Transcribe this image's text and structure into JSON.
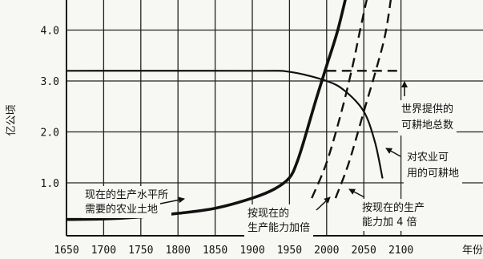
{
  "chart_data": {
    "type": "line",
    "title": "",
    "xlabel": "年份",
    "ylabel": "亿公顷",
    "xlim": [
      1650,
      2100
    ],
    "ylim": [
      0,
      4.5
    ],
    "x_ticks": [
      "1650",
      "1700",
      "1750",
      "1800",
      "1850",
      "1900",
      "1950",
      "2000",
      "2050",
      "2100"
    ],
    "y_ticks": [
      "1.0",
      "2.0",
      "3.0",
      "4.0"
    ],
    "grid": true,
    "series": [
      {
        "style": "solid-thick",
        "points": [
          [
            1650,
            0.28
          ],
          [
            1700,
            0.29
          ],
          [
            1750,
            0.33
          ],
          [
            1800,
            0.4
          ],
          [
            1850,
            0.5
          ],
          [
            1900,
            0.7
          ],
          [
            1930,
            0.88
          ],
          [
            1950,
            1.1
          ],
          [
            1960,
            1.4
          ],
          [
            1970,
            1.85
          ],
          [
            1985,
            2.6
          ],
          [
            2000,
            3.3
          ],
          [
            2015,
            4.0
          ],
          [
            2030,
            4.9
          ]
        ]
      },
      {
        "style": "solid",
        "points": [
          [
            1650,
            3.2
          ],
          [
            1900,
            3.2
          ],
          [
            1950,
            3.18
          ],
          [
            2000,
            3.0
          ],
          [
            2025,
            2.8
          ],
          [
            2050,
            2.4
          ],
          [
            2065,
            1.8
          ],
          [
            2075,
            1.1
          ]
        ]
      },
      {
        "style": "dashed",
        "points": [
          [
            1980,
            0.7
          ],
          [
            2000,
            1.4
          ],
          [
            2020,
            2.4
          ],
          [
            2035,
            3.3
          ],
          [
            2045,
            4.0
          ],
          [
            2060,
            5.0
          ]
        ]
      },
      {
        "style": "dashed",
        "points": [
          [
            2012,
            0.7
          ],
          [
            2030,
            1.4
          ],
          [
            2050,
            2.4
          ],
          [
            2068,
            3.3
          ],
          [
            2080,
            4.0
          ],
          [
            2090,
            5.0
          ]
        ]
      },
      {
        "style": "dashed",
        "points": [
          [
            2000,
            3.2
          ],
          [
            2100,
            3.2
          ]
        ]
      }
    ],
    "annotations": [
      {
        "lines": [
          "现在的生产水平所",
          "需要的农业土地"
        ]
      },
      {
        "lines": [
          "世界提供的",
          "可耕地总数"
        ]
      },
      {
        "lines": [
          "对农业可",
          "用的可耕地"
        ]
      },
      {
        "lines": [
          "按现在的",
          "生产能力加倍"
        ]
      },
      {
        "lines": [
          "按现在的生产",
          "能力加 4 倍"
        ]
      }
    ]
  }
}
